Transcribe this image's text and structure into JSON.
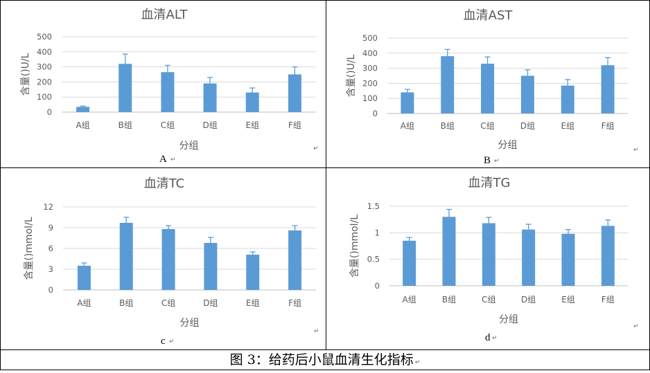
{
  "figure_caption": "图 3：给药后小鼠血清生化指标",
  "paragraph_mark": "↵",
  "colors": {
    "bar": "#5b9bd5",
    "grid": "#d9d9d9",
    "text": "#595959",
    "axis": "#bfbfbf"
  },
  "chart_data": [
    {
      "type": "bar",
      "title": "血清ALT",
      "panel_label": "A",
      "xlabel": "分组",
      "ylabel": "含量()U/L",
      "categories": [
        "A组",
        "B组",
        "C组",
        "D组",
        "E组",
        "F组"
      ],
      "values": [
        35,
        320,
        265,
        190,
        130,
        250
      ],
      "errors": [
        5,
        65,
        45,
        40,
        30,
        50
      ],
      "ylim": [
        0,
        500
      ],
      "yticks": [
        "0",
        "100",
        "200",
        "300",
        "400",
        "500"
      ],
      "grid": true
    },
    {
      "type": "bar",
      "title": "血清AST",
      "panel_label": "B",
      "xlabel": "分组",
      "ylabel": "含量()U/L",
      "categories": [
        "A组",
        "B组",
        "C组",
        "D组",
        "E组",
        "F组"
      ],
      "values": [
        140,
        380,
        330,
        250,
        185,
        320
      ],
      "errors": [
        20,
        45,
        45,
        40,
        40,
        50
      ],
      "ylim": [
        0,
        500
      ],
      "yticks": [
        "0",
        "100",
        "200",
        "300",
        "400",
        "500"
      ],
      "grid": true
    },
    {
      "type": "bar",
      "title": "血清TC",
      "panel_label": "c",
      "xlabel": "分组",
      "ylabel": "含量()mmol/L",
      "categories": [
        "A组",
        "B组",
        "C组",
        "D组",
        "E组",
        "F组"
      ],
      "values": [
        3.5,
        9.7,
        8.8,
        6.8,
        5.1,
        8.6
      ],
      "errors": [
        0.4,
        0.8,
        0.5,
        0.8,
        0.4,
        0.7
      ],
      "ylim": [
        0,
        12
      ],
      "yticks": [
        "0",
        "3",
        "6",
        "9",
        "12"
      ],
      "grid": true
    },
    {
      "type": "bar",
      "title": "血清TG",
      "panel_label": "d",
      "xlabel": "分组",
      "ylabel": "含量()mmol/L",
      "categories": [
        "A组",
        "B组",
        "C组",
        "D组",
        "E组",
        "F组"
      ],
      "values": [
        0.85,
        1.3,
        1.18,
        1.06,
        0.98,
        1.13
      ],
      "errors": [
        0.06,
        0.14,
        0.11,
        0.1,
        0.08,
        0.11
      ],
      "ylim": [
        0,
        1.5
      ],
      "yticks": [
        "0",
        "0.5",
        "1",
        "1.5"
      ],
      "grid": true
    }
  ]
}
